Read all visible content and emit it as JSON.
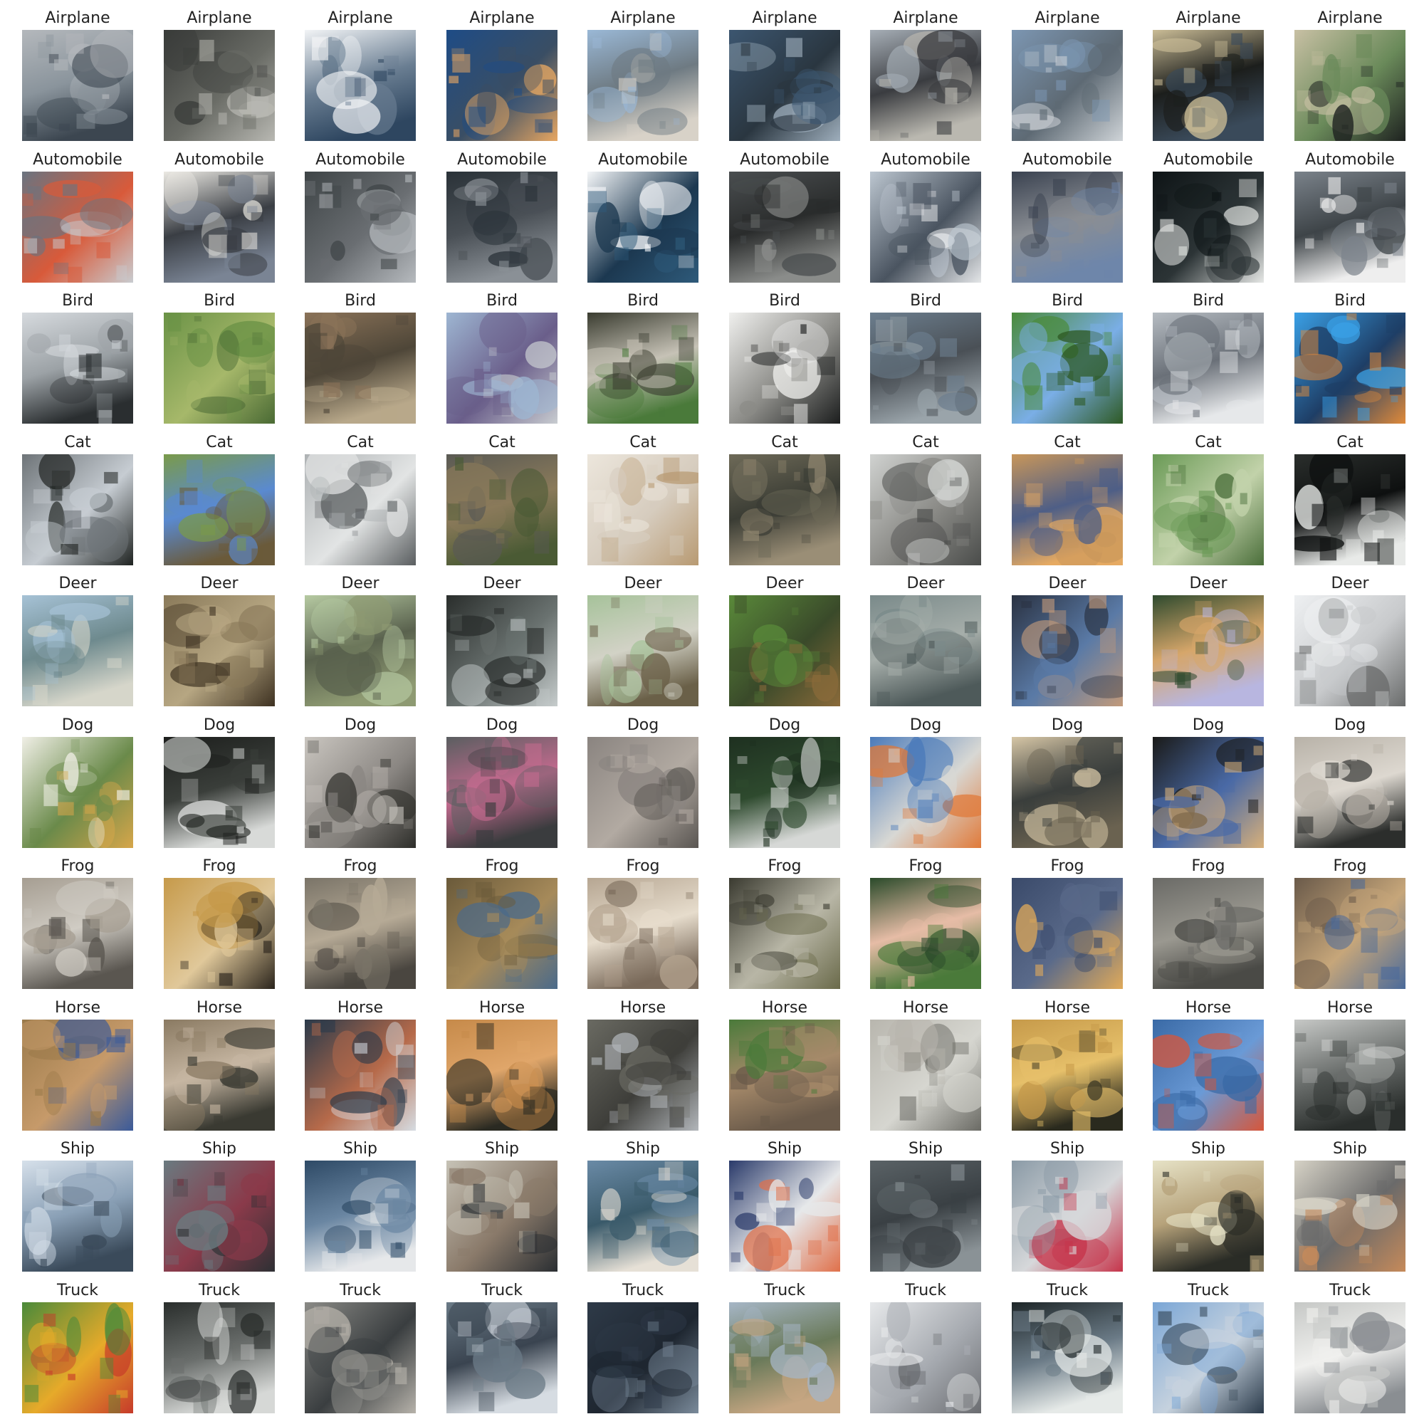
{
  "grid": {
    "rows": [
      {
        "label": "Airplane",
        "colors": [
          [
            "#b4b8bc",
            "#3c4650",
            "#8a949c"
          ],
          [
            "#3a3c3a",
            "#b8b8b2",
            "#6a6c66"
          ],
          [
            "#f2f4f6",
            "#2e4660",
            "#6a7e92"
          ],
          [
            "#1e4c86",
            "#e6a662",
            "#3a4e64"
          ],
          [
            "#9ab8d6",
            "#d8d2c8",
            "#6e7a82"
          ],
          [
            "#3c5670",
            "#9eaebc",
            "#2a3640"
          ],
          [
            "#a6aeb6",
            "#bab8b0",
            "#3a3c40"
          ],
          [
            "#7c96b2",
            "#cfd4d8",
            "#5e6a74"
          ],
          [
            "#cabc96",
            "#3a4a5a",
            "#1c1e1c"
          ],
          [
            "#c8c0a4",
            "#1e2220",
            "#6a8a5a"
          ]
        ]
      },
      {
        "label": "Automobile",
        "colors": [
          [
            "#6a7480",
            "#c8ccd0",
            "#d85a3a"
          ],
          [
            "#eceae4",
            "#7a8494",
            "#3a3e44"
          ],
          [
            "#3e4446",
            "#b6babe",
            "#6a6e72"
          ],
          [
            "#2a3238",
            "#8a9096",
            "#4a5056"
          ],
          [
            "#f4f6f8",
            "#2e5a7a",
            "#1c3850"
          ],
          [
            "#4a4e50",
            "#8a8c8a",
            "#2a2c2c"
          ],
          [
            "#bcc6d0",
            "#e4e6e8",
            "#4a5460"
          ],
          [
            "#3a4250",
            "#6e86aa",
            "#8a8e94"
          ],
          [
            "#0e1416",
            "#e6e8e6",
            "#2c3436"
          ],
          [
            "#7a828a",
            "#eeeeee",
            "#3e4448"
          ]
        ]
      },
      {
        "label": "Bird",
        "colors": [
          [
            "#d6dade",
            "#2a2e30",
            "#9ca2a6"
          ],
          [
            "#6a9246",
            "#4a6a34",
            "#a6b86a"
          ],
          [
            "#8a7258",
            "#b8a88a",
            "#4e4638"
          ],
          [
            "#9eb6d2",
            "#c8ccd0",
            "#6a5e8a"
          ],
          [
            "#3a3c30",
            "#4a7a3a",
            "#c6c2b6"
          ],
          [
            "#f0f0ee",
            "#1c1e1e",
            "#8a8a86"
          ],
          [
            "#6c7e8e",
            "#9aa4aa",
            "#4a5056"
          ],
          [
            "#4a8a3a",
            "#2e5a24",
            "#7aaee6"
          ],
          [
            "#b6bcc2",
            "#e6e8ea",
            "#6a7078"
          ],
          [
            "#3aa0e6",
            "#e08a3a",
            "#1e3e66"
          ]
        ]
      },
      {
        "label": "Cat",
        "colors": [
          [
            "#6e7478",
            "#1e2220",
            "#c6ccd2"
          ],
          [
            "#7a9a4a",
            "#6a5a3a",
            "#5a8ad0"
          ],
          [
            "#aeb2b4",
            "#5a5e60",
            "#e2e4e4"
          ],
          [
            "#5a5a54",
            "#4a5a34",
            "#8a7a5a"
          ],
          [
            "#ece6dc",
            "#b89a72",
            "#d6ccbe"
          ],
          [
            "#6e6a58",
            "#9a8e76",
            "#3a3c34"
          ],
          [
            "#d0d2d0",
            "#4a4c4a",
            "#8a8a86"
          ],
          [
            "#c8965a",
            "#e6aa62",
            "#4e5e86"
          ],
          [
            "#6a9a56",
            "#4a6e3a",
            "#c2d2aa"
          ],
          [
            "#2a2e2c",
            "#e8eae8",
            "#0e1010"
          ]
        ]
      },
      {
        "label": "Deer",
        "colors": [
          [
            "#a6c2d6",
            "#d6d6ca",
            "#6e8a8e"
          ],
          [
            "#8a7a5a",
            "#3e3222",
            "#b6a682"
          ],
          [
            "#b6caa2",
            "#8e9a72",
            "#5a624e"
          ],
          [
            "#2a2e2c",
            "#c6cccc",
            "#6a7270"
          ],
          [
            "#a6c29a",
            "#6a6048",
            "#d2d2c6"
          ],
          [
            "#5a8a3a",
            "#8a6a3a",
            "#3a4a2a"
          ],
          [
            "#7a8a8a",
            "#4e5a5a",
            "#a6aeaa"
          ],
          [
            "#2a3242",
            "#c29a7a",
            "#5a7aa6"
          ],
          [
            "#2e4a2e",
            "#b8b6e0",
            "#d6a66a"
          ],
          [
            "#eef0f2",
            "#6a6c6c",
            "#c8cacc"
          ]
        ]
      },
      {
        "label": "Dog",
        "colors": [
          [
            "#f0efe6",
            "#d6a64a",
            "#6a8a4a"
          ],
          [
            "#1c1e1c",
            "#d8dad8",
            "#3a3e3a"
          ],
          [
            "#cac6c0",
            "#2e2e2a",
            "#8a8682"
          ],
          [
            "#5a5e60",
            "#3a3c3e",
            "#c26a8e"
          ],
          [
            "#8a8480",
            "#5a5652",
            "#b2aaa2"
          ],
          [
            "#1e3020",
            "#d6d8d6",
            "#2e4a2e"
          ],
          [
            "#4a7aba",
            "#e07a3a",
            "#d8d8d4"
          ],
          [
            "#d6c6a6",
            "#6a6250",
            "#3a3e3c"
          ],
          [
            "#1a1a18",
            "#d8b07a",
            "#4a6aa6"
          ],
          [
            "#b8b2a8",
            "#2c2e2c",
            "#ddd8d0"
          ]
        ]
      },
      {
        "label": "Frog",
        "colors": [
          [
            "#a69e92",
            "#5a5650",
            "#d0ccc4"
          ],
          [
            "#c69a4a",
            "#2a241c",
            "#e0c89a"
          ],
          [
            "#7a7468",
            "#4a4640",
            "#b6aa96"
          ],
          [
            "#6a5a3a",
            "#4a6a8a",
            "#a68a5a"
          ],
          [
            "#b6a692",
            "#7a6a5a",
            "#e6dccc"
          ],
          [
            "#3a3a30",
            "#6a6a4a",
            "#b8b6a6"
          ],
          [
            "#2a4a2a",
            "#4a7a3a",
            "#e6bca6"
          ],
          [
            "#3a4a6a",
            "#e0aa5a",
            "#5a6a8a"
          ],
          [
            "#6a6a66",
            "#4a4a46",
            "#9a9890"
          ],
          [
            "#6a5a4a",
            "#4a6a9a",
            "#c6a67a"
          ]
        ]
      },
      {
        "label": "Horse",
        "colors": [
          [
            "#9a7a4a",
            "#3a5a9a",
            "#c69a6a"
          ],
          [
            "#8a7a62",
            "#3a3a32",
            "#c6b6a2"
          ],
          [
            "#2a3a4a",
            "#d6dce2",
            "#b66a4a"
          ],
          [
            "#c68a4a",
            "#2a2a22",
            "#e0a66a"
          ],
          [
            "#6a6a62",
            "#b2b6ba",
            "#3e3e3a"
          ],
          [
            "#4a7a3a",
            "#6a5a4a",
            "#a68a6a"
          ],
          [
            "#b8b6ae",
            "#6a6a64",
            "#d6d6d0"
          ],
          [
            "#c69a4a",
            "#2a2a1e",
            "#e6c06a"
          ],
          [
            "#3a6aa6",
            "#d6563a",
            "#6a9ad6"
          ],
          [
            "#c6c8c6",
            "#2a2e2c",
            "#6a6e6c"
          ]
        ]
      },
      {
        "label": "Ship",
        "colors": [
          [
            "#d6e0ea",
            "#3a4a5a",
            "#8aa0b6"
          ],
          [
            "#6a7a80",
            "#2e3034",
            "#8a3a4a"
          ],
          [
            "#2e4a66",
            "#e6e8ea",
            "#6a86a2"
          ],
          [
            "#c6c2b6",
            "#2a2e32",
            "#8a7a6a"
          ],
          [
            "#6a8aa6",
            "#e6e0d6",
            "#3a5a6a"
          ],
          [
            "#2a3a6a",
            "#e0704a",
            "#e6e8ea"
          ],
          [
            "#5a6266",
            "#8a9296",
            "#3a4044"
          ],
          [
            "#8a9aa6",
            "#c6344a",
            "#d6d8da"
          ],
          [
            "#e6e2c6",
            "#2a2c26",
            "#b6a27a"
          ],
          [
            "#d6d2c6",
            "#c68a5a",
            "#6a6a6a"
          ]
        ]
      },
      {
        "label": "Truck",
        "colors": [
          [
            "#4a8a3a",
            "#c63a2a",
            "#e6aa2a"
          ],
          [
            "#2a2e2c",
            "#d6d8d6",
            "#6a6e6c"
          ],
          [
            "#8a8a86",
            "#b6b2aa",
            "#3a3e40"
          ],
          [
            "#6a7a86",
            "#d6dce2",
            "#3a4450"
          ],
          [
            "#2e3a48",
            "#7a8a9a",
            "#1e2630"
          ],
          [
            "#a6b6c6",
            "#c6a682",
            "#6a7a5a"
          ],
          [
            "#e6e8ea",
            "#6a6c70",
            "#a6aab0"
          ],
          [
            "#1e2628",
            "#e6eae8",
            "#6a7a86"
          ],
          [
            "#7aa6d6",
            "#2a3a4a",
            "#c6d2de"
          ],
          [
            "#c6c8c6",
            "#8a8e92",
            "#f0f0ee"
          ]
        ]
      }
    ]
  }
}
